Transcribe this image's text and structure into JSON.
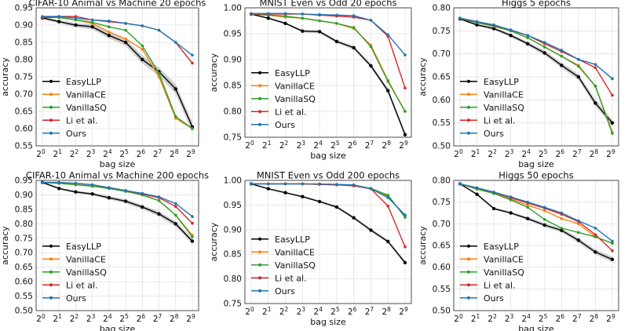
{
  "series_meta": [
    {
      "name": "EasyLLP",
      "color": "#000000"
    },
    {
      "name": "VanillaCE",
      "color": "#ff7f0e"
    },
    {
      "name": "VanillaSQ",
      "color": "#2ca02c"
    },
    {
      "name": "Li et al.",
      "color": "#d62728"
    },
    {
      "name": "Ours",
      "color": "#1f77b4"
    }
  ],
  "chart_data": [
    {
      "type": "line",
      "title": "CIFAR-10 Animal vs Machine 20 epochs",
      "xlabel": "bag size",
      "ylabel": "accuracy",
      "categories": [
        "2^0",
        "2^1",
        "2^2",
        "2^3",
        "2^4",
        "2^5",
        "2^6",
        "2^7",
        "2^8",
        "2^9"
      ],
      "ylim": [
        0.55,
        0.95
      ],
      "yticks": [
        "0.55",
        "0.60",
        "0.65",
        "0.70",
        "0.75",
        "0.80",
        "0.85",
        "0.90",
        "0.95"
      ],
      "legend": "lower-left",
      "series": [
        {
          "name": "EasyLLP",
          "values": [
            0.921,
            0.91,
            0.9,
            0.895,
            0.87,
            0.85,
            0.8,
            0.765,
            0.715,
            0.605
          ]
        },
        {
          "name": "VanillaCE",
          "values": [
            0.922,
            0.922,
            0.915,
            0.905,
            0.88,
            0.86,
            0.83,
            0.75,
            0.63,
            0.6
          ]
        },
        {
          "name": "VanillaSQ",
          "values": [
            0.922,
            0.922,
            0.915,
            0.908,
            0.895,
            0.885,
            0.84,
            0.76,
            0.635,
            0.6
          ]
        },
        {
          "name": "Li et al.",
          "values": [
            0.922,
            0.925,
            0.925,
            0.915,
            0.91,
            0.905,
            0.898,
            0.885,
            0.85,
            0.79
          ]
        },
        {
          "name": "Ours",
          "values": [
            0.925,
            0.925,
            0.92,
            0.915,
            0.912,
            0.905,
            0.898,
            0.885,
            0.85,
            0.813
          ]
        }
      ]
    },
    {
      "type": "line",
      "title": "MNIST Even vs Odd 20 epochs",
      "xlabel": "bag size",
      "ylabel": "accuracy",
      "categories": [
        "2^0",
        "2^1",
        "2^2",
        "2^3",
        "2^4",
        "2^5",
        "2^6",
        "2^7",
        "2^8",
        "2^9"
      ],
      "ylim": [
        0.75,
        1.0
      ],
      "yticks": [
        "0.75",
        "0.80",
        "0.85",
        "0.90",
        "0.95",
        "1.00"
      ],
      "legend": "lower-left",
      "series": [
        {
          "name": "EasyLLP",
          "values": [
            0.988,
            0.98,
            0.97,
            0.955,
            0.954,
            0.935,
            0.923,
            0.888,
            0.84,
            0.755
          ]
        },
        {
          "name": "VanillaCE",
          "values": [
            0.988,
            0.986,
            0.982,
            0.98,
            0.975,
            0.97,
            0.96,
            0.928,
            0.86,
            0.8
          ]
        },
        {
          "name": "VanillaSQ",
          "values": [
            0.988,
            0.986,
            0.984,
            0.98,
            0.975,
            0.97,
            0.962,
            0.925,
            0.858,
            0.8
          ]
        },
        {
          "name": "Li et al.",
          "values": [
            0.988,
            0.988,
            0.988,
            0.988,
            0.986,
            0.984,
            0.982,
            0.976,
            0.945,
            0.845
          ]
        },
        {
          "name": "Ours",
          "values": [
            0.989,
            0.989,
            0.989,
            0.988,
            0.987,
            0.986,
            0.985,
            0.976,
            0.948,
            0.909
          ]
        }
      ]
    },
    {
      "type": "line",
      "title": "Higgs 5 epochs",
      "xlabel": "bag size",
      "ylabel": "accuracy",
      "categories": [
        "2^0",
        "2^1",
        "2^2",
        "2^3",
        "2^4",
        "2^5",
        "2^6",
        "2^7",
        "2^8",
        "2^9"
      ],
      "ylim": [
        0.5,
        0.8
      ],
      "yticks": [
        "0.50",
        "0.55",
        "0.60",
        "0.65",
        "0.70",
        "0.75",
        "0.80"
      ],
      "legend": "lower-left",
      "series": [
        {
          "name": "EasyLLP",
          "values": [
            0.776,
            0.763,
            0.755,
            0.74,
            0.722,
            0.702,
            0.675,
            0.65,
            0.593,
            0.55
          ]
        },
        {
          "name": "VanillaCE",
          "values": [
            0.777,
            0.768,
            0.76,
            0.75,
            0.735,
            0.715,
            0.695,
            0.675,
            0.63,
            0.53
          ]
        },
        {
          "name": "VanillaSQ",
          "values": [
            0.777,
            0.768,
            0.76,
            0.75,
            0.735,
            0.715,
            0.695,
            0.673,
            0.63,
            0.527
          ]
        },
        {
          "name": "Li et al.",
          "values": [
            0.777,
            0.77,
            0.762,
            0.752,
            0.74,
            0.722,
            0.705,
            0.688,
            0.67,
            0.61
          ]
        },
        {
          "name": "Ours",
          "values": [
            0.778,
            0.77,
            0.763,
            0.752,
            0.74,
            0.725,
            0.708,
            0.688,
            0.677,
            0.646
          ]
        }
      ]
    },
    {
      "type": "line",
      "title": "CIFAR-10 Animal vs Machine 200 epochs",
      "xlabel": "bag size",
      "ylabel": "accuracy",
      "categories": [
        "2^0",
        "2^1",
        "2^2",
        "2^3",
        "2^4",
        "2^5",
        "2^6",
        "2^7",
        "2^8",
        "2^9"
      ],
      "ylim": [
        0.5,
        0.95
      ],
      "yticks": [
        "0.50",
        "0.55",
        "0.60",
        "0.65",
        "0.70",
        "0.75",
        "0.80",
        "0.85",
        "0.90",
        "0.95"
      ],
      "legend": "lower-left",
      "series": [
        {
          "name": "EasyLLP",
          "values": [
            0.943,
            0.922,
            0.91,
            0.903,
            0.89,
            0.878,
            0.858,
            0.834,
            0.8,
            0.74
          ]
        },
        {
          "name": "VanillaCE",
          "values": [
            0.943,
            0.94,
            0.935,
            0.93,
            0.922,
            0.912,
            0.9,
            0.88,
            0.83,
            0.76
          ]
        },
        {
          "name": "VanillaSQ",
          "values": [
            0.943,
            0.94,
            0.935,
            0.93,
            0.922,
            0.912,
            0.9,
            0.88,
            0.83,
            0.755
          ]
        },
        {
          "name": "Li et al.",
          "values": [
            0.943,
            0.943,
            0.94,
            0.935,
            0.925,
            0.915,
            0.903,
            0.89,
            0.86,
            0.802
          ]
        },
        {
          "name": "Ours",
          "values": [
            0.943,
            0.943,
            0.94,
            0.935,
            0.925,
            0.915,
            0.905,
            0.893,
            0.87,
            0.825
          ]
        }
      ]
    },
    {
      "type": "line",
      "title": "MNIST Even vs Odd 200 epochs",
      "xlabel": "bag size",
      "ylabel": "accuracy",
      "categories": [
        "2^0",
        "2^1",
        "2^2",
        "2^3",
        "2^4",
        "2^5",
        "2^6",
        "2^7",
        "2^8",
        "2^9"
      ],
      "ylim": [
        0.75,
        1.0
      ],
      "yticks": [
        "0.75",
        "0.80",
        "0.85",
        "0.90",
        "0.95",
        "1.00"
      ],
      "legend": "lower-left",
      "series": [
        {
          "name": "EasyLLP",
          "values": [
            0.993,
            0.983,
            0.975,
            0.967,
            0.957,
            0.946,
            0.924,
            0.899,
            0.876,
            0.833
          ]
        },
        {
          "name": "VanillaCE",
          "values": [
            0.993,
            0.993,
            0.993,
            0.993,
            0.992,
            0.991,
            0.99,
            0.983,
            0.968,
            0.928
          ]
        },
        {
          "name": "VanillaSQ",
          "values": [
            0.993,
            0.993,
            0.993,
            0.993,
            0.992,
            0.991,
            0.99,
            0.984,
            0.97,
            0.925
          ]
        },
        {
          "name": "Li et al.",
          "values": [
            0.993,
            0.993,
            0.993,
            0.993,
            0.992,
            0.991,
            0.989,
            0.983,
            0.948,
            0.865
          ]
        },
        {
          "name": "Ours",
          "values": [
            0.993,
            0.993,
            0.993,
            0.993,
            0.993,
            0.992,
            0.991,
            0.983,
            0.965,
            0.93
          ]
        }
      ]
    },
    {
      "type": "line",
      "title": "Higgs 50 epochs",
      "xlabel": "bag size",
      "ylabel": "accuracy",
      "categories": [
        "2^0",
        "2^1",
        "2^2",
        "2^3",
        "2^4",
        "2^5",
        "2^6",
        "2^7",
        "2^8",
        "2^9"
      ],
      "ylim": [
        0.5,
        0.8
      ],
      "yticks": [
        "0.50",
        "0.55",
        "0.60",
        "0.65",
        "0.70",
        "0.75",
        "0.80"
      ],
      "legend": "lower-left",
      "series": [
        {
          "name": "EasyLLP",
          "values": [
            0.792,
            0.768,
            0.735,
            0.725,
            0.712,
            0.697,
            0.685,
            0.662,
            0.635,
            0.618
          ]
        },
        {
          "name": "VanillaCE",
          "values": [
            0.792,
            0.78,
            0.77,
            0.757,
            0.743,
            0.73,
            0.712,
            0.7,
            0.67,
            0.655
          ]
        },
        {
          "name": "VanillaSQ",
          "values": [
            0.792,
            0.78,
            0.77,
            0.755,
            0.738,
            0.71,
            0.69,
            0.68,
            0.67,
            0.655
          ]
        },
        {
          "name": "Li et al.",
          "values": [
            0.792,
            0.783,
            0.772,
            0.76,
            0.748,
            0.736,
            0.722,
            0.705,
            0.675,
            0.638
          ]
        },
        {
          "name": "Ours",
          "values": [
            0.792,
            0.783,
            0.773,
            0.762,
            0.75,
            0.738,
            0.725,
            0.707,
            0.69,
            0.66
          ]
        }
      ]
    }
  ]
}
